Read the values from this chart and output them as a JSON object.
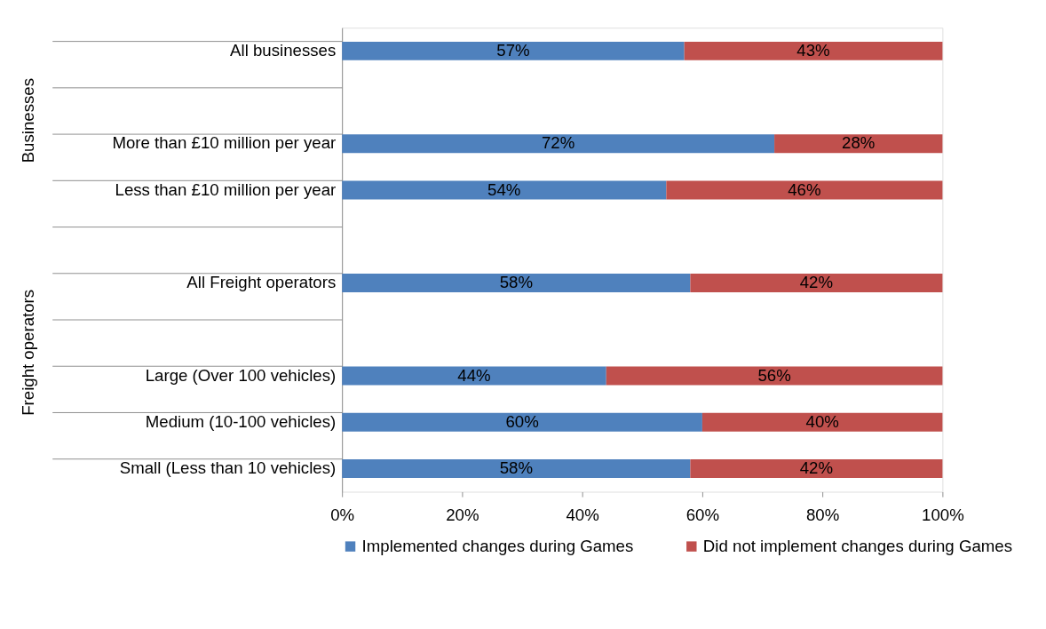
{
  "chart_data": {
    "type": "bar",
    "orientation": "horizontal",
    "stacked": true,
    "categories": [
      "All businesses",
      null,
      "More than £10 million per year",
      "Less than £10 million per year",
      null,
      "All Freight operators",
      null,
      "Large (Over 100 vehicles)",
      "Medium (10-100 vehicles)",
      "Small (Less than 10 vehicles)"
    ],
    "series": [
      {
        "name": "Implemented changes during Games",
        "color": "#4f81bd",
        "values": [
          57,
          null,
          72,
          54,
          null,
          58,
          null,
          44,
          60,
          58
        ],
        "value_labels": [
          "57%",
          null,
          "72%",
          "54%",
          null,
          "58%",
          null,
          "44%",
          "60%",
          "58%"
        ]
      },
      {
        "name": "Did not implement changes during Games",
        "color": "#c0504d",
        "values": [
          43,
          null,
          28,
          46,
          null,
          42,
          null,
          56,
          40,
          42
        ],
        "value_labels": [
          "43%",
          null,
          "28%",
          "46%",
          null,
          "42%",
          null,
          "56%",
          "40%",
          "42%"
        ]
      }
    ],
    "xlim": [
      0,
      100
    ],
    "xticks": [
      {
        "value": 0,
        "label": "0%"
      },
      {
        "value": 20,
        "label": "20%"
      },
      {
        "value": 40,
        "label": "40%"
      },
      {
        "value": 60,
        "label": "60%"
      },
      {
        "value": 80,
        "label": "80%"
      },
      {
        "value": 100,
        "label": "100%"
      }
    ],
    "annotations": [
      "Businesses",
      "Freight operators"
    ],
    "legend": "bottom",
    "grid": false
  }
}
